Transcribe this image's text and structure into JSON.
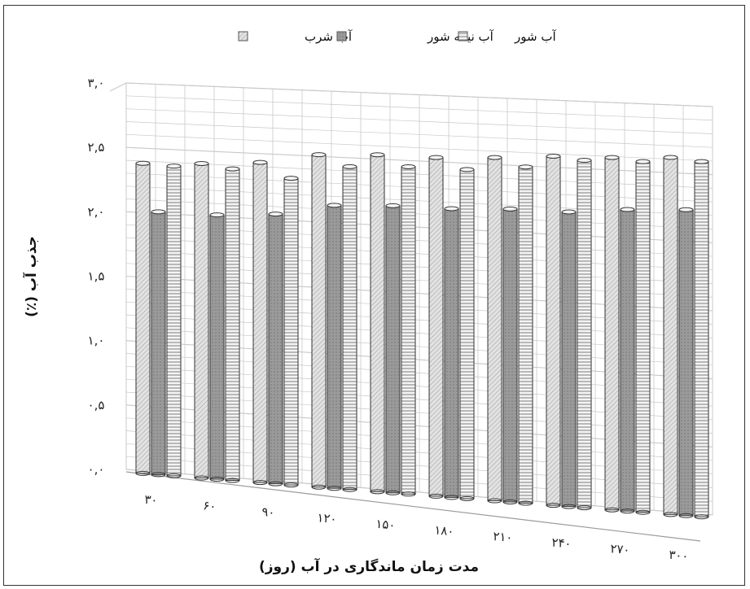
{
  "chart_data": {
    "type": "bar",
    "title": "",
    "xlabel": "مدت زمان ماندگاری در آب (روز)",
    "ylabel": "جذب آب (٪)",
    "ylim": [
      0,
      3.0
    ],
    "yticks": [
      "۰,۰",
      "۰,۵",
      "۱,۰",
      "۱,۵",
      "۲,۰",
      "۲,۵",
      "۳,۰"
    ],
    "ytick_values": [
      0,
      0.5,
      1.0,
      1.5,
      2.0,
      2.5,
      3.0
    ],
    "categories": [
      "۳۰",
      "۶۰",
      "۹۰",
      "۱۲۰",
      "۱۵۰",
      "۱۸۰",
      "۲۱۰",
      "۲۴۰",
      "۲۷۰",
      "۳۰۰"
    ],
    "series": [
      {
        "name": "آب شرب",
        "values": [
          2.38,
          2.4,
          2.43,
          2.51,
          2.53,
          2.53,
          2.55,
          2.58,
          2.59,
          2.61
        ]
      },
      {
        "name": "آب نیمه شور",
        "values": [
          2.01,
          2.01,
          2.04,
          2.13,
          2.15,
          2.15,
          2.17,
          2.17,
          2.21,
          2.23
        ]
      },
      {
        "name": "آب شور",
        "values": [
          2.37,
          2.37,
          2.32,
          2.43,
          2.45,
          2.45,
          2.49,
          2.56,
          2.57,
          2.59
        ]
      }
    ],
    "grid": true,
    "legend_position": "top",
    "colors": {
      "series": [
        "#e2e2e2",
        "#9a9a9a",
        "#f2f2f2"
      ],
      "grid": "#c8c8c8",
      "axis": "#9a9a9a"
    }
  }
}
